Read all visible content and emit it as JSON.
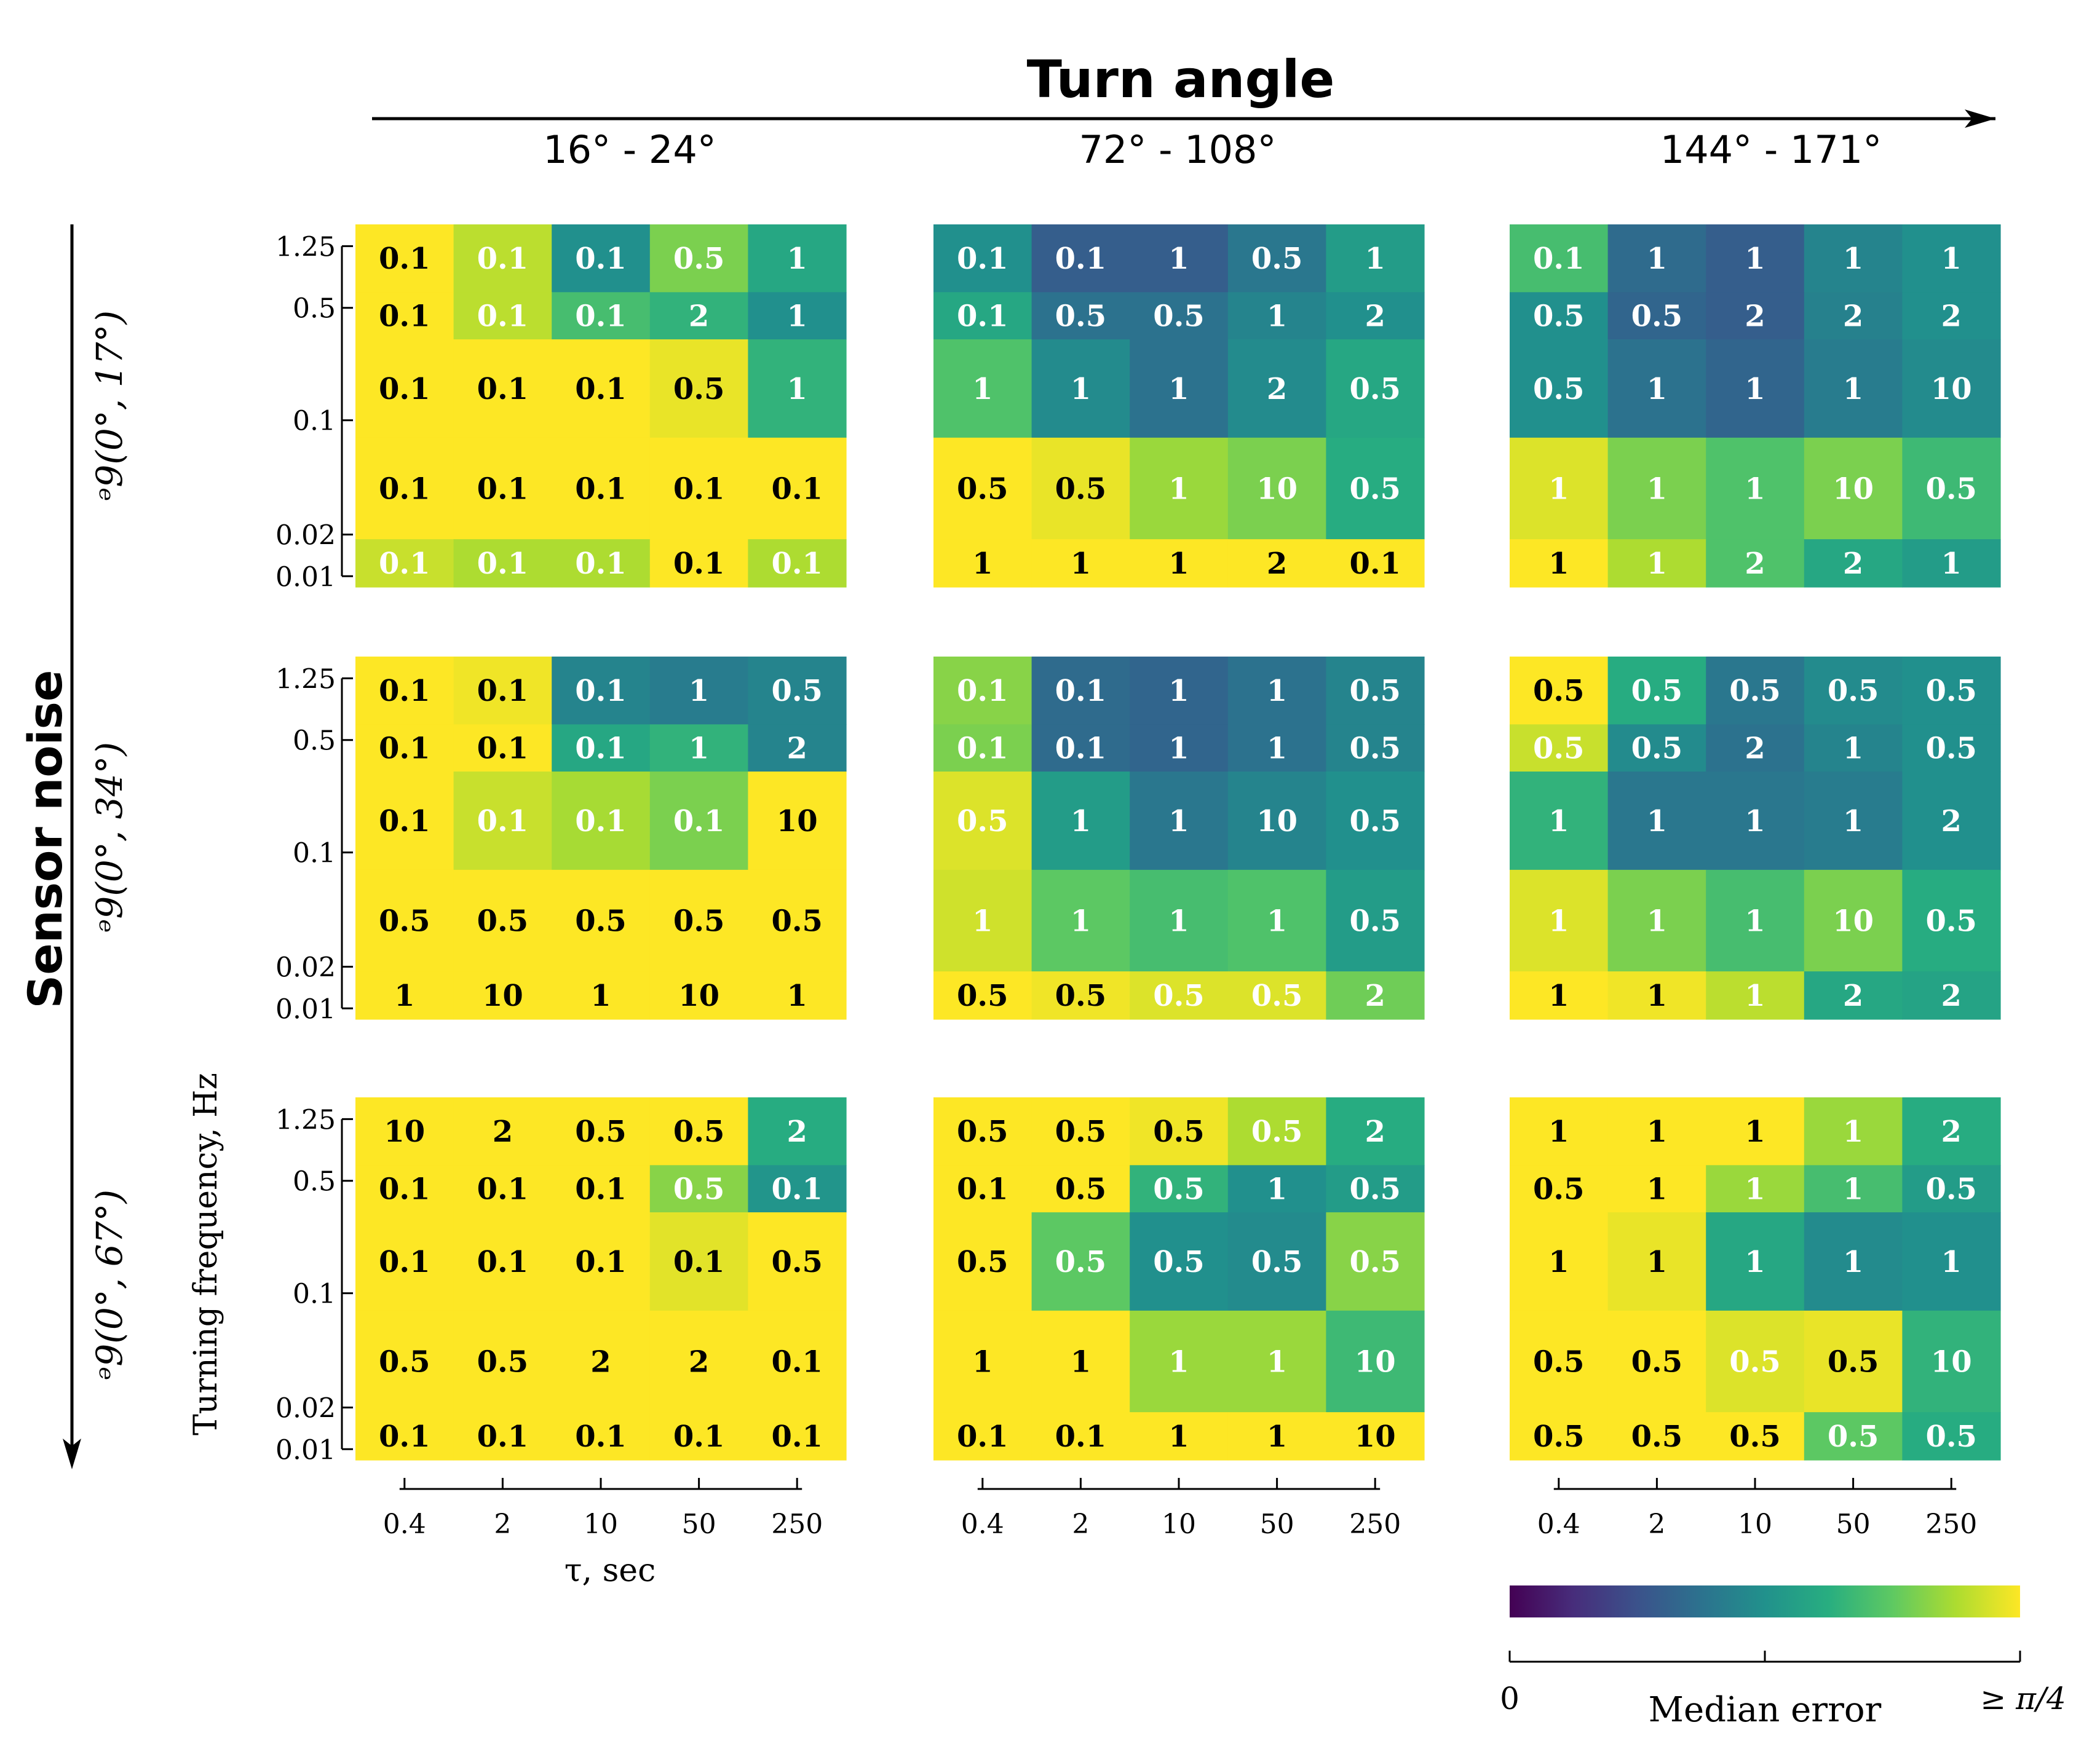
{
  "figure": {
    "title": "Turn angle",
    "row_title": "Sensor noise",
    "column_labels": [
      "16° - 24°",
      "72° - 108°",
      "144° - 171°"
    ],
    "row_labels": [
      "ᵊ9(0°,  17°)",
      "ᵊ9(0°,  34°)",
      "ᵊ9(0°,  67°)"
    ],
    "x_axis_label": "τ, sec",
    "y_axis_label": "Turning frequency, Hz",
    "colorbar": {
      "label": "Median error",
      "min_label": "0",
      "max_label": "≥ π/4",
      "min_value": 0,
      "max_value": 0.7854,
      "colormap": "viridis"
    }
  },
  "chart_data": {
    "type": "heatmap",
    "x_ticks": [
      "0.4",
      "2",
      "10",
      "50",
      "250"
    ],
    "x_values": [
      0.4,
      2,
      10,
      50,
      250
    ],
    "y_ticks": [
      "1.25",
      "0.5",
      "0.1",
      "0.02",
      "0.01"
    ],
    "y_values": [
      1.25,
      0.5,
      0.1,
      0.02,
      0.01
    ],
    "panels": [
      {
        "row": 0,
        "col": 0,
        "annotations": [
          [
            "0.1",
            "0.1",
            "0.1",
            "0.5",
            "1"
          ],
          [
            "0.1",
            "0.1",
            "0.1",
            "2",
            "1"
          ],
          [
            "0.1",
            "0.1",
            "0.1",
            "0.5",
            "1"
          ],
          [
            "0.1",
            "0.1",
            "0.1",
            "0.1",
            "0.1"
          ],
          [
            "0.1",
            "0.1",
            "0.1",
            "0.1",
            "0.1"
          ]
        ],
        "color_values": [
          [
            1.0,
            0.9,
            0.5,
            0.8,
            0.6
          ],
          [
            1.0,
            0.9,
            0.7,
            0.65,
            0.5
          ],
          [
            1.0,
            1.0,
            1.0,
            0.97,
            0.65
          ],
          [
            1.0,
            1.0,
            1.0,
            1.0,
            1.0
          ],
          [
            0.92,
            0.88,
            0.88,
            1.0,
            0.88
          ]
        ]
      },
      {
        "row": 0,
        "col": 1,
        "annotations": [
          [
            "0.1",
            "0.1",
            "1",
            "0.5",
            "1"
          ],
          [
            "0.1",
            "0.5",
            "0.5",
            "1",
            "2"
          ],
          [
            "1",
            "1",
            "1",
            "2",
            "0.5"
          ],
          [
            "0.5",
            "0.5",
            "1",
            "10",
            "0.5"
          ],
          [
            "1",
            "1",
            "1",
            "2",
            "0.1"
          ]
        ],
        "color_values": [
          [
            0.5,
            0.3,
            0.3,
            0.4,
            0.55
          ],
          [
            0.6,
            0.38,
            0.38,
            0.45,
            0.5
          ],
          [
            0.72,
            0.48,
            0.38,
            0.48,
            0.6
          ],
          [
            1.0,
            0.97,
            0.85,
            0.8,
            0.62
          ],
          [
            1.0,
            1.0,
            1.0,
            1.0,
            1.0
          ]
        ]
      },
      {
        "row": 0,
        "col": 2,
        "annotations": [
          [
            "0.1",
            "1",
            "1",
            "1",
            "1"
          ],
          [
            "0.5",
            "0.5",
            "2",
            "2",
            "2"
          ],
          [
            "0.5",
            "1",
            "1",
            "1",
            "10"
          ],
          [
            "1",
            "1",
            "1",
            "10",
            "0.5"
          ],
          [
            "1",
            "1",
            "2",
            "2",
            "1"
          ]
        ],
        "color_values": [
          [
            0.7,
            0.35,
            0.3,
            0.45,
            0.5
          ],
          [
            0.5,
            0.33,
            0.3,
            0.44,
            0.5
          ],
          [
            0.5,
            0.38,
            0.33,
            0.42,
            0.48
          ],
          [
            0.95,
            0.8,
            0.72,
            0.8,
            0.68
          ],
          [
            1.0,
            0.88,
            0.72,
            0.6,
            0.55
          ]
        ]
      },
      {
        "row": 1,
        "col": 0,
        "annotations": [
          [
            "0.1",
            "0.1",
            "0.1",
            "1",
            "0.5"
          ],
          [
            "0.1",
            "0.1",
            "0.1",
            "1",
            "2"
          ],
          [
            "0.1",
            "0.1",
            "0.1",
            "0.1",
            "10"
          ],
          [
            "0.5",
            "0.5",
            "0.5",
            "0.5",
            "0.5"
          ],
          [
            "1",
            "10",
            "1",
            "10",
            "1"
          ]
        ],
        "color_values": [
          [
            1.0,
            0.98,
            0.45,
            0.42,
            0.45
          ],
          [
            1.0,
            1.0,
            0.6,
            0.65,
            0.45
          ],
          [
            1.0,
            0.92,
            0.87,
            0.8,
            1.0
          ],
          [
            1.0,
            1.0,
            1.0,
            1.0,
            1.0
          ],
          [
            1.0,
            1.0,
            1.0,
            1.0,
            1.0
          ]
        ]
      },
      {
        "row": 1,
        "col": 1,
        "annotations": [
          [
            "0.1",
            "0.1",
            "1",
            "1",
            "0.5"
          ],
          [
            "0.1",
            "0.1",
            "1",
            "1",
            "0.5"
          ],
          [
            "0.5",
            "1",
            "1",
            "10",
            "0.5"
          ],
          [
            "1",
            "1",
            "1",
            "1",
            "0.5"
          ],
          [
            "0.5",
            "0.5",
            "0.5",
            "0.5",
            "2"
          ]
        ],
        "color_values": [
          [
            0.82,
            0.35,
            0.33,
            0.38,
            0.45
          ],
          [
            0.8,
            0.35,
            0.33,
            0.38,
            0.45
          ],
          [
            0.95,
            0.55,
            0.4,
            0.45,
            0.5
          ],
          [
            0.93,
            0.75,
            0.7,
            0.72,
            0.55
          ],
          [
            1.0,
            0.98,
            0.95,
            0.95,
            0.78
          ]
        ]
      },
      {
        "row": 1,
        "col": 2,
        "annotations": [
          [
            "0.5",
            "0.5",
            "0.5",
            "0.5",
            "0.5"
          ],
          [
            "0.5",
            "0.5",
            "2",
            "1",
            "0.5"
          ],
          [
            "1",
            "1",
            "1",
            "1",
            "2"
          ],
          [
            "1",
            "1",
            "1",
            "10",
            "0.5"
          ],
          [
            "1",
            "1",
            "1",
            "2",
            "2"
          ]
        ],
        "color_values": [
          [
            1.0,
            0.62,
            0.4,
            0.48,
            0.5
          ],
          [
            0.92,
            0.48,
            0.38,
            0.45,
            0.5
          ],
          [
            0.65,
            0.4,
            0.4,
            0.42,
            0.5
          ],
          [
            0.95,
            0.8,
            0.7,
            0.8,
            0.62
          ],
          [
            1.0,
            0.98,
            0.9,
            0.6,
            0.58
          ]
        ]
      },
      {
        "row": 2,
        "col": 0,
        "annotations": [
          [
            "10",
            "2",
            "0.5",
            "0.5",
            "2"
          ],
          [
            "0.1",
            "0.1",
            "0.1",
            "0.5",
            "0.1"
          ],
          [
            "0.1",
            "0.1",
            "0.1",
            "0.1",
            "0.5"
          ],
          [
            "0.5",
            "0.5",
            "2",
            "2",
            "0.1"
          ],
          [
            "0.1",
            "0.1",
            "0.1",
            "0.1",
            "0.1"
          ]
        ],
        "color_values": [
          [
            1.0,
            1.0,
            1.0,
            1.0,
            0.62
          ],
          [
            1.0,
            1.0,
            1.0,
            0.82,
            0.52
          ],
          [
            1.0,
            1.0,
            1.0,
            0.96,
            1.0
          ],
          [
            1.0,
            1.0,
            1.0,
            1.0,
            1.0
          ],
          [
            1.0,
            1.0,
            1.0,
            1.0,
            1.0
          ]
        ]
      },
      {
        "row": 2,
        "col": 1,
        "annotations": [
          [
            "0.5",
            "0.5",
            "0.5",
            "0.5",
            "2"
          ],
          [
            "0.1",
            "0.5",
            "0.5",
            "1",
            "0.5"
          ],
          [
            "0.5",
            "0.5",
            "0.5",
            "0.5",
            "0.5"
          ],
          [
            "1",
            "1",
            "1",
            "1",
            "10"
          ],
          [
            "0.1",
            "0.1",
            "1",
            "1",
            "10"
          ]
        ],
        "color_values": [
          [
            1.0,
            1.0,
            0.98,
            0.88,
            0.62
          ],
          [
            1.0,
            1.0,
            0.65,
            0.5,
            0.55
          ],
          [
            1.0,
            0.75,
            0.5,
            0.48,
            0.82
          ],
          [
            1.0,
            1.0,
            0.85,
            0.85,
            0.68
          ],
          [
            1.0,
            1.0,
            1.0,
            1.0,
            1.0
          ]
        ]
      },
      {
        "row": 2,
        "col": 2,
        "annotations": [
          [
            "1",
            "1",
            "1",
            "1",
            "2"
          ],
          [
            "0.5",
            "1",
            "1",
            "1",
            "0.5"
          ],
          [
            "1",
            "1",
            "1",
            "1",
            "1"
          ],
          [
            "0.5",
            "0.5",
            "0.5",
            "0.5",
            "10"
          ],
          [
            "0.5",
            "0.5",
            "0.5",
            "0.5",
            "0.5"
          ]
        ],
        "color_values": [
          [
            1.0,
            1.0,
            1.0,
            0.85,
            0.62
          ],
          [
            1.0,
            1.0,
            0.85,
            0.7,
            0.55
          ],
          [
            1.0,
            0.97,
            0.6,
            0.48,
            0.5
          ],
          [
            1.0,
            1.0,
            0.95,
            0.97,
            0.65
          ],
          [
            1.0,
            1.0,
            1.0,
            0.75,
            0.62
          ]
        ]
      }
    ]
  }
}
